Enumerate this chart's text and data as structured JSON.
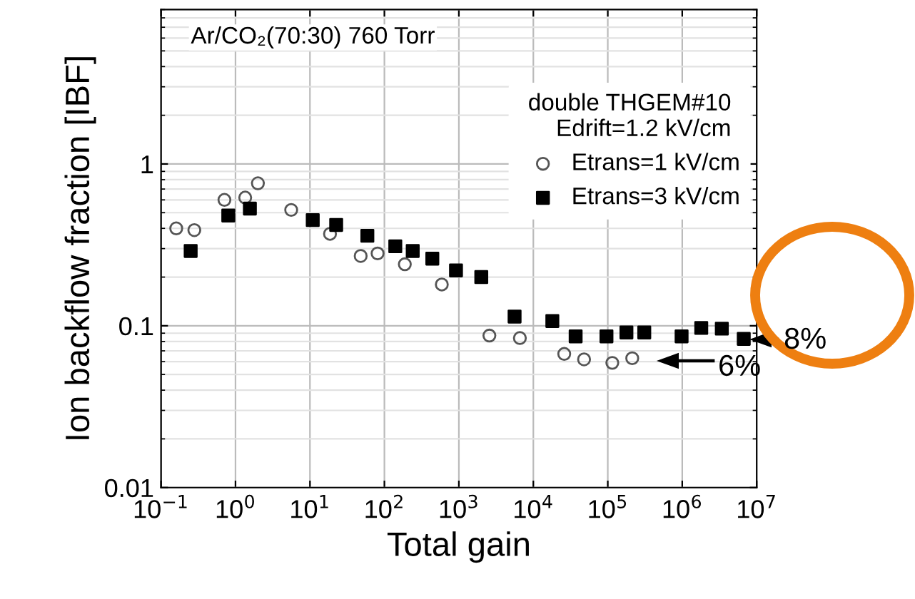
{
  "chart_data": {
    "type": "scatter",
    "xlabel": "Total gain",
    "ylabel": "Ion backflow fraction [IBF]",
    "legend_title": "double THGEM#10\nEdrift=1.2 kV/cm",
    "log": "xy",
    "grid": true,
    "legend": "top right",
    "xlim": [
      0.1,
      10000000
    ],
    "ylim": [
      0.01,
      9
    ],
    "xticks": [
      {
        "value": 0.1,
        "label": "10$^{−1}$"
      },
      {
        "value": 1,
        "label": "10$^{0}$"
      },
      {
        "value": 10,
        "label": "10$^{1}$"
      },
      {
        "value": 100,
        "label": "10$^{2}$"
      },
      {
        "value": 1000,
        "label": "10$^{3}$"
      },
      {
        "value": 10000,
        "label": "10$^{4}$"
      },
      {
        "value": 100000,
        "label": "10$^{5}$"
      },
      {
        "value": 1000000,
        "label": "10$^{6}$"
      },
      {
        "value": 10000000,
        "label": "10$^{7}$"
      }
    ],
    "yticks": [
      0.01,
      0.1,
      1
    ],
    "series": [
      {
        "name": "Etrans=1 kV/cm",
        "color": "#555555",
        "marker": "circle",
        "x": [
          0.16,
          0.28,
          0.71,
          1.35,
          2.0,
          5.6,
          18.6,
          48,
          81,
          188,
          590,
          2570,
          6600,
          26000,
          48000,
          115000,
          213000
        ],
        "values": [
          0.4,
          0.39,
          0.6,
          0.62,
          0.76,
          0.52,
          0.37,
          0.27,
          0.28,
          0.24,
          0.18,
          0.087,
          0.084,
          0.067,
          0.062,
          0.059,
          0.063
        ]
      },
      {
        "name": "Etrans=3 kV/cm",
        "color": "#000000",
        "marker": "square",
        "x": [
          0.25,
          0.8,
          1.56,
          10.9,
          22.5,
          59,
          140,
          240,
          440,
          915,
          2000,
          5600,
          18000,
          37000,
          96000,
          178000,
          309000,
          980000,
          1800000,
          3400000,
          6700000
        ],
        "values": [
          0.29,
          0.48,
          0.53,
          0.45,
          0.42,
          0.36,
          0.31,
          0.29,
          0.26,
          0.22,
          0.2,
          0.114,
          0.107,
          0.086,
          0.086,
          0.091,
          0.091,
          0.086,
          0.097,
          0.096,
          0.083
        ]
      }
    ],
    "annotations": [
      "Ar/CO₂(70:30) 760 Torr",
      "8%",
      "6%"
    ]
  }
}
